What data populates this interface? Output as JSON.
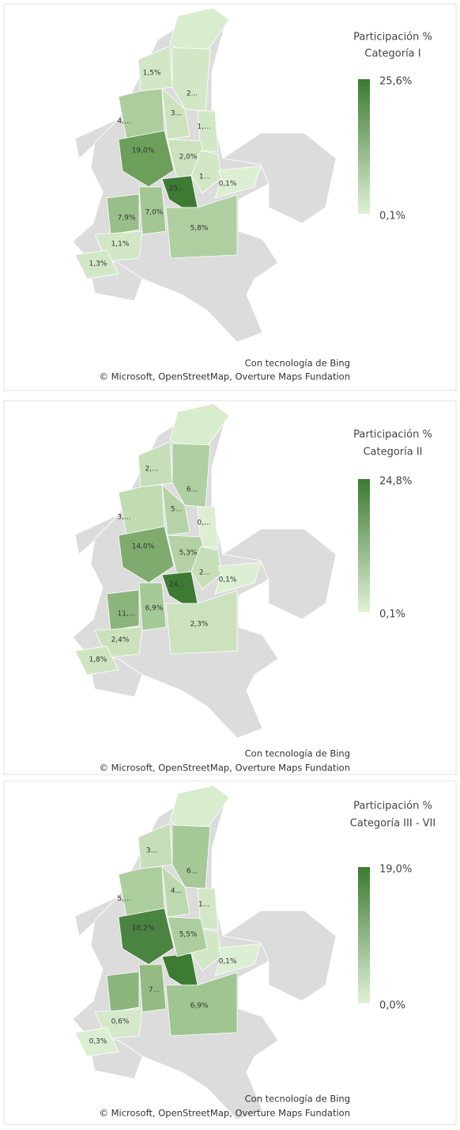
{
  "panels": [
    {
      "legend": {
        "title_lines": [
          "Participación %",
          "Categoría I"
        ],
        "max": "25,6%",
        "min": "0,1%"
      },
      "regions": [
        {
          "label": "1,5%",
          "color": "#d2e7c6"
        },
        {
          "label": "2...",
          "color": "#d2e7c6"
        },
        {
          "label": "3...",
          "color": "#cbe2bd"
        },
        {
          "label": "4,...",
          "color": "#aecd9f"
        },
        {
          "label": "1,...",
          "color": "#d2e7c6"
        },
        {
          "label": "19,0%",
          "color": "#6d9f5c"
        },
        {
          "label": "2,0%",
          "color": "#cbe2bd"
        },
        {
          "label": "1...",
          "color": "#d2e7c6"
        },
        {
          "label": "0,1%",
          "color": "#ddefd3"
        },
        {
          "label": "25,...",
          "color": "#3d7b33"
        },
        {
          "label": "7,9%",
          "color": "#98bf89"
        },
        {
          "label": "7,0%",
          "color": "#a2c694"
        },
        {
          "label": "5,8%",
          "color": "#afcfa1"
        },
        {
          "label": "1,1%",
          "color": "#d2e7c6"
        },
        {
          "label": "1,3%",
          "color": "#d2e7c6"
        }
      ],
      "credits": [
        "Con tecnología de Bing",
        "© Microsoft, OpenStreetMap, Overture Maps Fundation"
      ]
    },
    {
      "legend": {
        "title_lines": [
          "Participación %",
          "Categoría II"
        ],
        "max": "24,8%",
        "min": "0,1%"
      },
      "regions": [
        {
          "label": "2,...",
          "color": "#c6dfb8"
        },
        {
          "label": "6...",
          "color": "#b0cfa2"
        },
        {
          "label": "5...",
          "color": "#b6d3a8"
        },
        {
          "label": "3,...",
          "color": "#c1dcb3"
        },
        {
          "label": "0,...",
          "color": "#ddefd3"
        },
        {
          "label": "14,0%",
          "color": "#7fab6e"
        },
        {
          "label": "5,3%",
          "color": "#b3d1a5"
        },
        {
          "label": "2...",
          "color": "#c6dfb8"
        },
        {
          "label": "0,1%",
          "color": "#ddefd3"
        },
        {
          "label": "24,...",
          "color": "#3d7b33"
        },
        {
          "label": "11,...",
          "color": "#8bb57b"
        },
        {
          "label": "6,9%",
          "color": "#a6c998"
        },
        {
          "label": "2,3%",
          "color": "#cbe2bd"
        },
        {
          "label": "2,4%",
          "color": "#cbe2bd"
        },
        {
          "label": "1,8%",
          "color": "#cfe5c2"
        }
      ],
      "credits": [
        "Con tecnología de Bing",
        "© Microsoft, OpenStreetMap, Overture Maps Fundation"
      ]
    },
    {
      "legend": {
        "title_lines": [
          "Participación %",
          "Categoría III - VII"
        ],
        "max": "19,0%",
        "min": "0,0%"
      },
      "regions": [
        {
          "label": "3...",
          "color": "#c6dfb8"
        },
        {
          "label": "6...",
          "color": "#a6c998"
        },
        {
          "label": "4...",
          "color": "#bdd9af"
        },
        {
          "label": "5,...",
          "color": "#acce9e"
        },
        {
          "label": "1...",
          "color": "#d2e7c6"
        },
        {
          "label": "18,2%",
          "color": "#4a8440"
        },
        {
          "label": "5,5%",
          "color": "#acce9e"
        },
        {
          "label": "0,1%",
          "color": "#ddefd3"
        },
        {
          "label": "7...",
          "color": "#93bb83"
        },
        {
          "label": "6,9%",
          "color": "#9fc591"
        },
        {
          "label": "0,6%",
          "color": "#d5e9ca"
        },
        {
          "label": "0,3%",
          "color": "#dbeed1"
        }
      ],
      "credits": [
        "Con tecnología de Bing",
        "© Microsoft, OpenStreetMap, Overture Maps Fundation"
      ]
    }
  ]
}
